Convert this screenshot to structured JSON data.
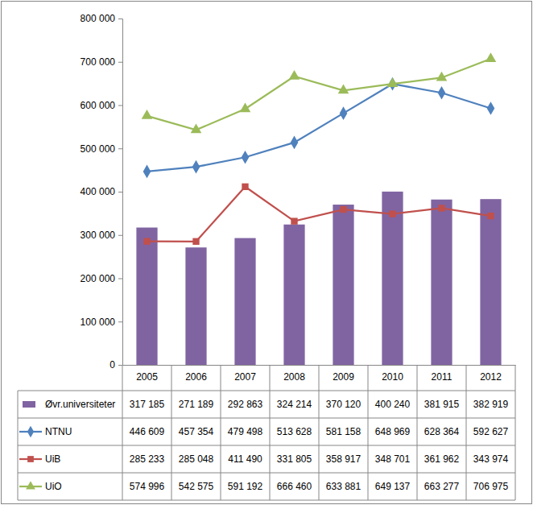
{
  "chart_data": {
    "type": "bar",
    "categories": [
      "2005",
      "2006",
      "2007",
      "2008",
      "2009",
      "2010",
      "2011",
      "2012"
    ],
    "series": [
      {
        "name": "Øvr.universiteter",
        "type": "bar",
        "color": "#8064A2",
        "values": [
          317185,
          271189,
          292863,
          324214,
          370120,
          400240,
          381915,
          382919
        ],
        "value_labels": [
          "317 185",
          "271 189",
          "292 863",
          "324 214",
          "370 120",
          "400 240",
          "381 915",
          "382 919"
        ]
      },
      {
        "name": "NTNU",
        "type": "line",
        "color": "#4F81BD",
        "marker": "diamond",
        "values": [
          446609,
          457354,
          479498,
          513628,
          581158,
          648969,
          628364,
          592627
        ],
        "value_labels": [
          "446 609",
          "457 354",
          "479 498",
          "513 628",
          "581 158",
          "648 969",
          "628 364",
          "592 627"
        ]
      },
      {
        "name": "UiB",
        "type": "line",
        "color": "#C0504D",
        "marker": "square",
        "values": [
          285233,
          285048,
          411490,
          331805,
          358917,
          348701,
          361962,
          343974
        ],
        "value_labels": [
          "285 233",
          "285 048",
          "411 490",
          "331 805",
          "358 917",
          "348 701",
          "361 962",
          "343 974"
        ]
      },
      {
        "name": "UiO",
        "type": "line",
        "color": "#9BBB59",
        "marker": "triangle",
        "values": [
          574996,
          542575,
          591192,
          666460,
          633881,
          649137,
          663277,
          706975
        ],
        "value_labels": [
          "574 996",
          "542 575",
          "591 192",
          "666 460",
          "633 881",
          "649 137",
          "663 277",
          "706 975"
        ]
      }
    ],
    "ylim": [
      0,
      800000
    ],
    "yticks": [
      0,
      {
        "value": 100000,
        "label": "100 000"
      },
      {
        "value": 200000,
        "label": "200 000"
      },
      {
        "value": 300000,
        "label": "300 000"
      },
      {
        "value": 400000,
        "label": "400 000"
      },
      {
        "value": 500000,
        "label": "500 000"
      },
      {
        "value": 600000,
        "label": "600 000"
      },
      {
        "value": 700000,
        "label": "700 000"
      },
      {
        "value": 800000,
        "label": "800 000"
      }
    ],
    "grid": false
  }
}
